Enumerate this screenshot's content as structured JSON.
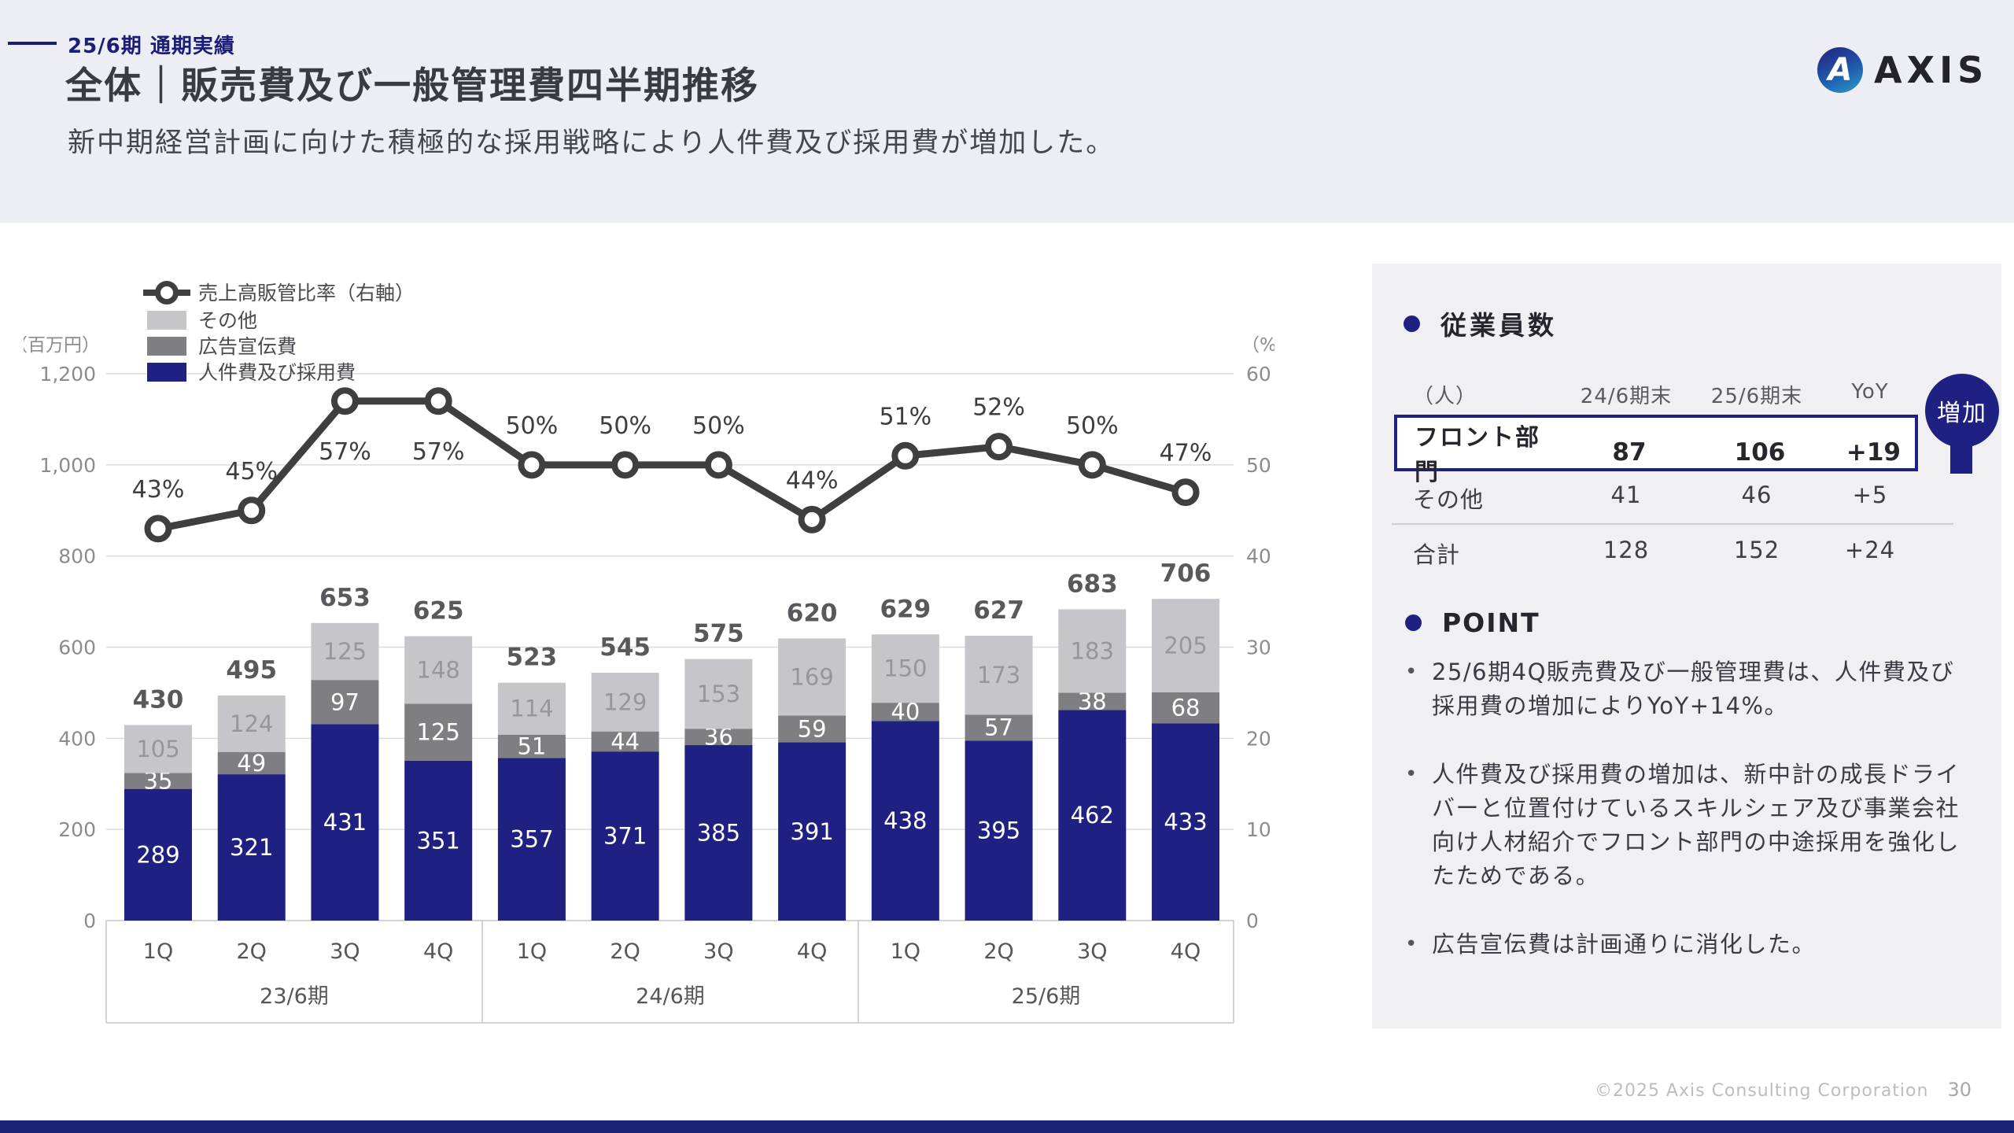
{
  "header": {
    "kicker": "25/6期 通期実績",
    "title": "全体｜販売費及び一般管理費四半期推移",
    "subtitle": "新中期経営計画に向けた積極的な採用戦略により人件費及び採用費が増加した。"
  },
  "logo": {
    "mark": "A",
    "text": "AXIS"
  },
  "chart_data": {
    "type": "combo",
    "bar_mode": "stacked",
    "unit_left": "（百万円）",
    "unit_right": "（%）",
    "left_axis": {
      "max": 1200,
      "step": 200,
      "ticks": [
        "1,200",
        "1,000",
        "800",
        "600",
        "400",
        "200",
        "0"
      ]
    },
    "right_axis": {
      "max": 60,
      "step": 10,
      "ticks": [
        "60",
        "50",
        "40",
        "30",
        "20",
        "10",
        "0"
      ]
    },
    "categories": [
      "1Q",
      "2Q",
      "3Q",
      "4Q",
      "1Q",
      "2Q",
      "3Q",
      "4Q",
      "1Q",
      "2Q",
      "3Q",
      "4Q"
    ],
    "group_labels": [
      "23/6期",
      "24/6期",
      "25/6期"
    ],
    "series": [
      {
        "name": "人件費及び採用費",
        "color": "#1e2182",
        "label_color": "#ffffff",
        "values": [
          289,
          321,
          431,
          351,
          357,
          371,
          385,
          391,
          438,
          395,
          462,
          433
        ]
      },
      {
        "name": "広告宣伝費",
        "color": "#7f7f83",
        "label_color": "#ffffff",
        "values": [
          35,
          49,
          97,
          125,
          51,
          44,
          36,
          59,
          40,
          57,
          38,
          68
        ]
      },
      {
        "name": "その他",
        "color": "#c6c6ca",
        "label_color": "#97979b",
        "values": [
          105,
          124,
          125,
          148,
          114,
          129,
          153,
          169,
          150,
          173,
          183,
          205
        ]
      }
    ],
    "totals": [
      430,
      495,
      653,
      625,
      523,
      545,
      575,
      620,
      629,
      627,
      683,
      706
    ],
    "line": {
      "name": "売上高販管比率（右軸）",
      "color": "#3f3f3f",
      "values": [
        43,
        45,
        57,
        57,
        50,
        50,
        50,
        44,
        51,
        52,
        50,
        47
      ],
      "labels": [
        "43%",
        "45%",
        "57%",
        "57%",
        "50%",
        "50%",
        "50%",
        "44%",
        "51%",
        "52%",
        "50%",
        "47%"
      ],
      "label_below_indices": [
        2,
        3
      ]
    },
    "legend": [
      {
        "type": "line",
        "label": "売上高販管比率（右軸）",
        "color": "#3f3f3f"
      },
      {
        "type": "box",
        "label": "その他",
        "color": "#c6c6ca"
      },
      {
        "type": "box",
        "label": "広告宣伝費",
        "color": "#7f7f83"
      },
      {
        "type": "box",
        "label": "人件費及び採用費",
        "color": "#1e2182"
      }
    ]
  },
  "panel": {
    "employees": {
      "heading": "従業員数",
      "badge": "増加",
      "table": {
        "headers": [
          "（人）",
          "24/6期末",
          "25/6期末",
          "YoY"
        ],
        "rows": [
          {
            "label": "フロント部門",
            "c1": "87",
            "c2": "106",
            "c3": "+19"
          },
          {
            "label": "その他",
            "c1": "41",
            "c2": "46",
            "c3": "+5"
          },
          {
            "label": "合計",
            "c1": "128",
            "c2": "152",
            "c3": "+24"
          }
        ]
      }
    },
    "point": {
      "heading": "POINT",
      "bullets": [
        "25/6期4Q販売費及び一般管理費は、人件費及び採用費の増加によりYoY+14%。",
        "人件費及び採用費の増加は、新中計の成長ドライバーと位置付けているスキルシェア及び事業会社向け人材紹介でフロント部門の中途採用を強化したためである。",
        "広告宣伝費は計画通りに消化した。"
      ]
    }
  },
  "footer": {
    "copyright": "©2025 Axis Consulting Corporation",
    "page": "30"
  }
}
